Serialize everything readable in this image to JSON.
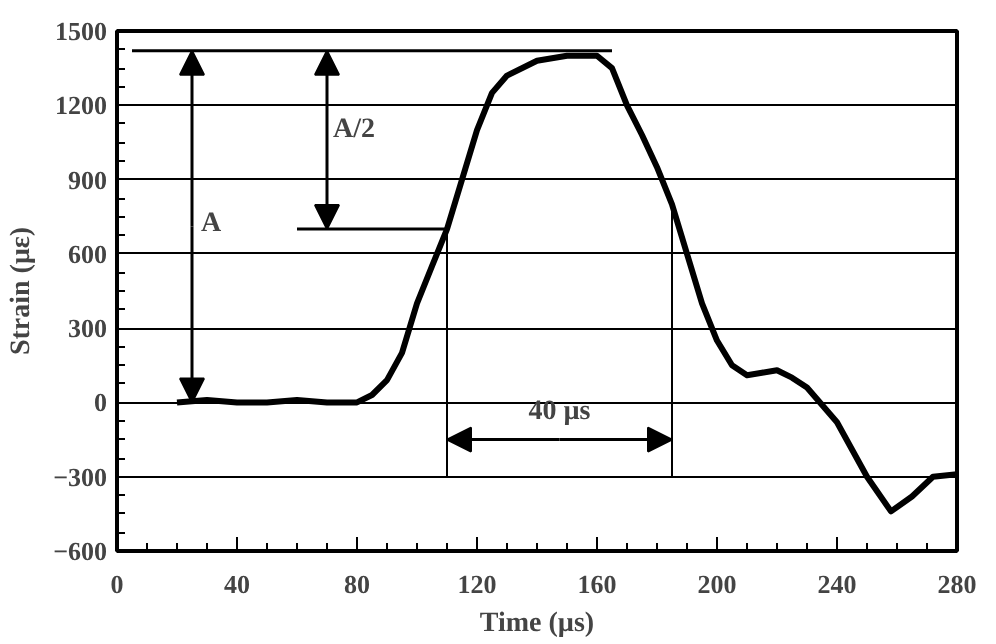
{
  "chart_data": {
    "type": "line",
    "xlabel": "Time (µs)",
    "ylabel": "Strain (με)",
    "x": [
      20,
      30,
      40,
      50,
      60,
      70,
      80,
      85,
      90,
      95,
      100,
      105,
      110,
      115,
      120,
      125,
      130,
      140,
      150,
      160,
      165,
      170,
      175,
      180,
      185,
      190,
      195,
      200,
      205,
      210,
      215,
      220,
      225,
      230,
      240,
      250,
      258,
      265,
      272,
      280
    ],
    "series": [
      {
        "color": "#000000",
        "values": [
          0,
          10,
          0,
          0,
          10,
          0,
          0,
          30,
          90,
          200,
          400,
          550,
          700,
          900,
          1100,
          1250,
          1320,
          1380,
          1400,
          1400,
          1350,
          1200,
          1080,
          950,
          800,
          600,
          400,
          250,
          150,
          110,
          120,
          130,
          100,
          60,
          -80,
          -300,
          -440,
          -380,
          -300,
          -290
        ]
      }
    ],
    "xlim": [
      0,
      280
    ],
    "ylim": [
      -600,
      1500
    ],
    "xticks": [
      0,
      40,
      80,
      120,
      160,
      200,
      240,
      280
    ],
    "yticks": [
      -600,
      -300,
      0,
      300,
      600,
      900,
      1200,
      1500
    ],
    "grid": "y",
    "line_style": "solid",
    "marker": "none",
    "ref_lines": [
      {
        "axis": "y",
        "value": 1420
      },
      {
        "axis": "y",
        "value": 700
      },
      {
        "axis": "x",
        "value": 110
      },
      {
        "axis": "x",
        "value": 185
      }
    ],
    "annotations": [
      {
        "text": "A",
        "x": 25,
        "y": 1420
      },
      {
        "text": "A/2",
        "x": 70,
        "y": 700
      },
      {
        "text": "40 µs",
        "x": 110,
        "y": -150
      }
    ]
  }
}
